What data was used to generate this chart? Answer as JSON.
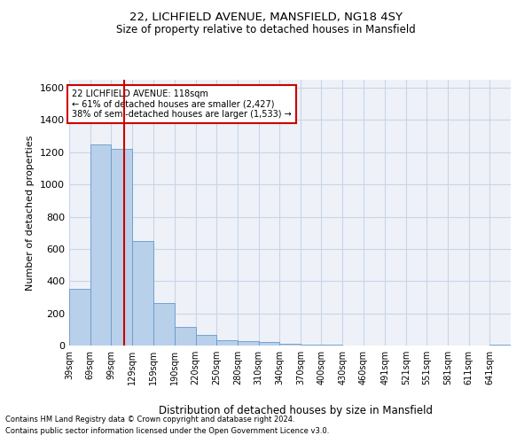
{
  "title1": "22, LICHFIELD AVENUE, MANSFIELD, NG18 4SY",
  "title2": "Size of property relative to detached houses in Mansfield",
  "xlabel": "Distribution of detached houses by size in Mansfield",
  "ylabel": "Number of detached properties",
  "footnote1": "Contains HM Land Registry data © Crown copyright and database right 2024.",
  "footnote2": "Contains public sector information licensed under the Open Government Licence v3.0.",
  "annotation_line1": "22 LICHFIELD AVENUE: 118sqm",
  "annotation_line2": "← 61% of detached houses are smaller (2,427)",
  "annotation_line3": "38% of semi-detached houses are larger (1,533) →",
  "property_size": 118,
  "bar_left_edges": [
    39,
    69,
    99,
    129,
    159,
    190,
    220,
    250,
    280,
    310,
    340,
    370,
    400,
    430,
    460,
    491,
    521,
    551,
    581,
    611,
    641
  ],
  "bar_heights": [
    350,
    1250,
    1220,
    650,
    265,
    115,
    65,
    35,
    25,
    20,
    10,
    5,
    3,
    2,
    2,
    1,
    1,
    1,
    1,
    1,
    5
  ],
  "bar_color": "#b8d0ea",
  "bar_edge_color": "#6699cc",
  "vline_color": "#cc0000",
  "vline_x": 118,
  "ylim": [
    0,
    1650
  ],
  "yticks": [
    0,
    200,
    400,
    600,
    800,
    1000,
    1200,
    1400,
    1600
  ],
  "grid_color": "#c8d4e8",
  "annotation_box_color": "#cc0000",
  "bg_color": "#eef2f8"
}
